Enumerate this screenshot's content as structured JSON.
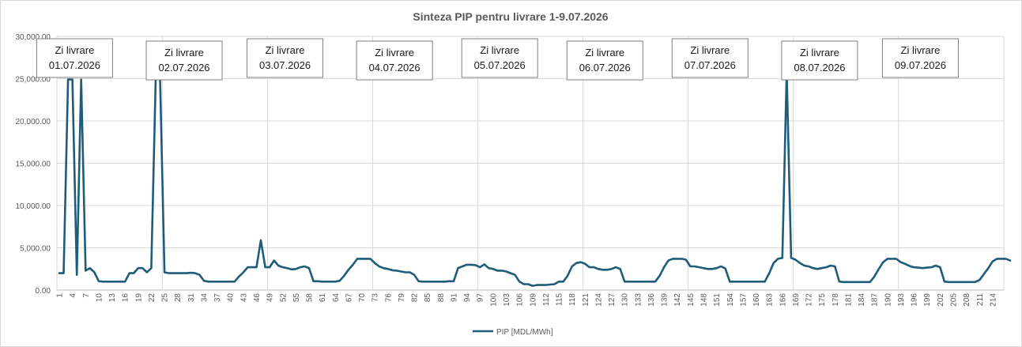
{
  "chart_data": {
    "type": "line",
    "title": "Sinteza PIP pentru livrare   1-9.07.2026",
    "xlabel": "",
    "ylabel": "",
    "ylim": [
      0,
      30000
    ],
    "yticks": [
      "0.00",
      "5,000.00",
      "10,000.00",
      "15,000.00",
      "20,000.00",
      "25,000.00",
      "30,000.00"
    ],
    "xlim": [
      1,
      216
    ],
    "xtick_start": 1,
    "xtick_step": 3,
    "grid": true,
    "legend_position": "bottom",
    "series_color": "#1f5c7a",
    "series": [
      {
        "name": "PIP [MDL/MWh]",
        "values": [
          2000,
          2000,
          24900,
          24900,
          1800,
          24900,
          2300,
          2600,
          2100,
          1050,
          1000,
          1000,
          1000,
          1000,
          1000,
          1000,
          2000,
          2000,
          2600,
          2600,
          2100,
          2600,
          25000,
          25100,
          2100,
          2000,
          2000,
          2000,
          2000,
          2000,
          2050,
          2000,
          1800,
          1100,
          1000,
          1000,
          1000,
          1000,
          1000,
          1000,
          1000,
          1600,
          2100,
          2700,
          2700,
          2700,
          5900,
          2700,
          2700,
          3500,
          2900,
          2700,
          2600,
          2450,
          2500,
          2700,
          2800,
          2600,
          1050,
          1050,
          1000,
          1000,
          1000,
          1000,
          1100,
          1700,
          2400,
          3000,
          3700,
          3700,
          3700,
          3700,
          3200,
          2800,
          2600,
          2500,
          2350,
          2300,
          2200,
          2100,
          2100,
          1800,
          1050,
          1000,
          1000,
          1000,
          1000,
          1000,
          1000,
          1050,
          1050,
          2600,
          2800,
          3000,
          3000,
          2950,
          2700,
          3050,
          2600,
          2500,
          2300,
          2300,
          2200,
          2000,
          1800,
          1000,
          700,
          700,
          500,
          600,
          600,
          600,
          650,
          700,
          1000,
          1000,
          1700,
          2800,
          3200,
          3300,
          3100,
          2700,
          2700,
          2500,
          2400,
          2400,
          2500,
          2700,
          2500,
          1000,
          1000,
          1000,
          1000,
          1000,
          1000,
          1000,
          1000,
          1700,
          2700,
          3500,
          3700,
          3700,
          3700,
          3600,
          2800,
          2800,
          2700,
          2600,
          2500,
          2500,
          2600,
          2800,
          2550,
          1000,
          1000,
          1000,
          1000,
          1000,
          1000,
          1000,
          1000,
          1000,
          2000,
          3200,
          3700,
          3800,
          25800,
          3800,
          3600,
          3200,
          2900,
          2800,
          2600,
          2500,
          2600,
          2700,
          2900,
          2800,
          1000,
          950,
          950,
          950,
          950,
          950,
          950,
          950,
          1600,
          2500,
          3300,
          3700,
          3700,
          3700,
          3300,
          3100,
          2850,
          2700,
          2650,
          2600,
          2650,
          2700,
          2900,
          2700,
          1000,
          950,
          950,
          950,
          950,
          950,
          950,
          950,
          1200,
          1900,
          2600,
          3400,
          3700,
          3700,
          3700,
          3500
        ]
      }
    ],
    "annotations": [
      {
        "line1": "Zi livrare",
        "line2": "01.07.2026",
        "at": 4.5
      },
      {
        "line1": "Zi livrare",
        "line2": "02.07.2026",
        "at": 29.5
      },
      {
        "line1": "Zi livrare",
        "line2": "03.07.2026",
        "at": 52.5
      },
      {
        "line1": "Zi livrare",
        "line2": "04.07.2026",
        "at": 77.5
      },
      {
        "line1": "Zi livrare",
        "line2": "05.07.2026",
        "at": 101.5
      },
      {
        "line1": "Zi livrare",
        "line2": "06.07.2026",
        "at": 125.5
      },
      {
        "line1": "Zi livrare",
        "line2": "07.07.2026",
        "at": 149.5
      },
      {
        "line1": "Zi livrare",
        "line2": "08.07.2026",
        "at": 174.5
      },
      {
        "line1": "Zi livrare",
        "line2": "09.07.2026",
        "at": 197.5
      }
    ]
  }
}
